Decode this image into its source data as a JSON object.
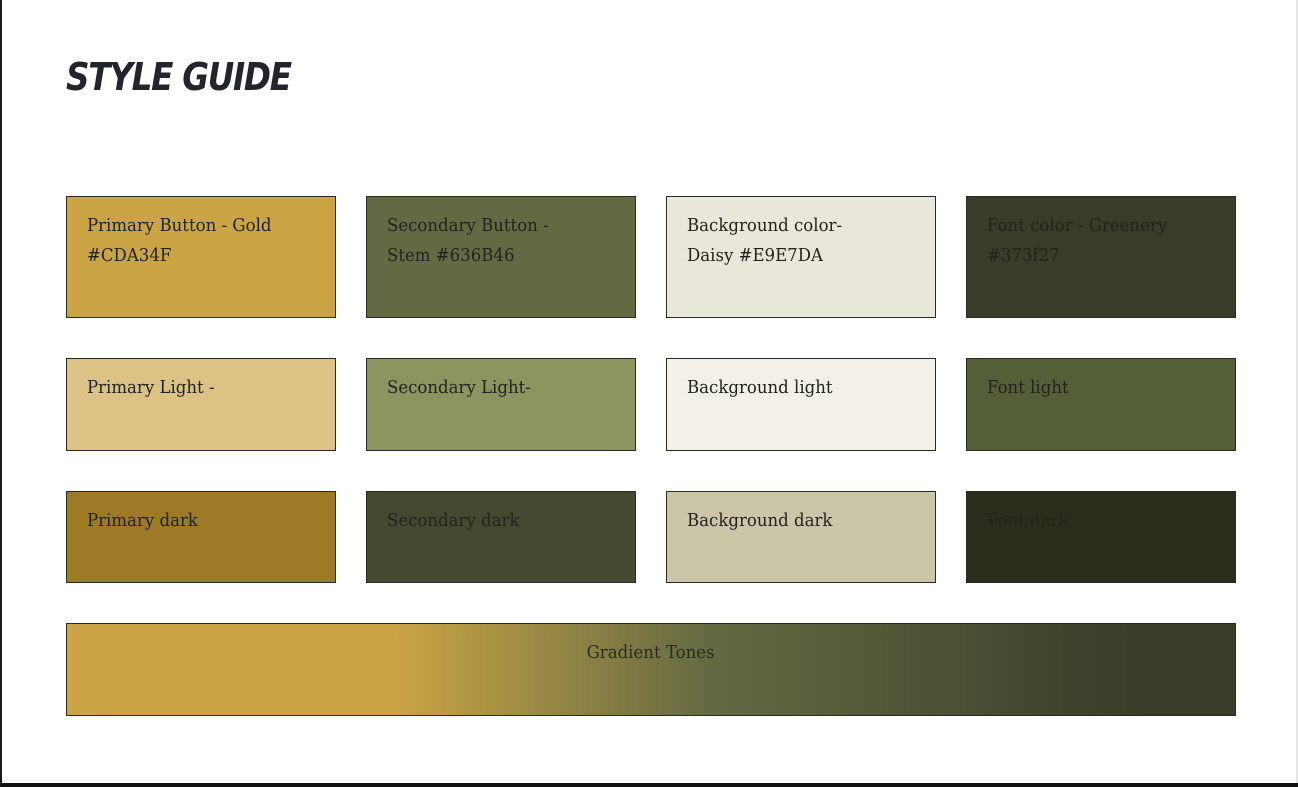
{
  "page": {
    "title": "STYLE GUIDE"
  },
  "swatches": [
    {
      "label": "Primary Button - Gold\n#CDA34F",
      "color": "#cba445"
    },
    {
      "label": "Secondary Button -\nStem #636B46",
      "color": "#636a43"
    },
    {
      "label": "Background color-\nDaisy #E9E7DA",
      "color": "#e9e6da"
    },
    {
      "label": "Font color - Greenery\n#373f27",
      "color": "#373d28"
    },
    {
      "label": "Primary Light -",
      "color": "#dcc385"
    },
    {
      "label": "Secondary Light-",
      "color": "#8c955f"
    },
    {
      "label": "Background light",
      "color": "#f3f0ea"
    },
    {
      "label": "Font light",
      "color": "#545f39"
    },
    {
      "label": "Primary dark",
      "color": "#9d7a25"
    },
    {
      "label": "Secondary dark",
      "color": "#444930"
    },
    {
      "label": "Background dark",
      "color": "#cbc6a7"
    },
    {
      "label": "Font dark",
      "color": "#292d1c"
    }
  ],
  "gradient": {
    "label": "Gradient Tones",
    "stops": [
      "#cba445",
      "#cba445",
      "#636a43",
      "#373d28"
    ]
  },
  "colors": {
    "text": "#22241c",
    "border": "#2a2a22"
  }
}
